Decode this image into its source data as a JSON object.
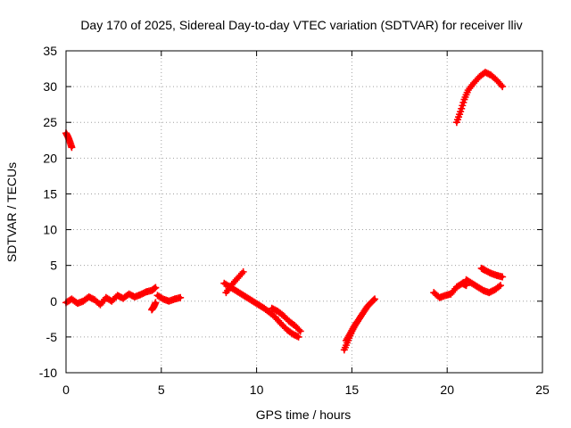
{
  "chart_data": {
    "type": "scatter",
    "title": "Day 170 of 2025, Sidereal Day-to-day VTEC variation (SDTVAR) for receiver lliv",
    "xlabel": "GPS time / hours",
    "ylabel": "SDTVAR / TECUs",
    "xlim": [
      0,
      25
    ],
    "ylim": [
      -10,
      35
    ],
    "xticks": [
      0,
      5,
      10,
      15,
      20,
      25
    ],
    "yticks": [
      -10,
      -5,
      0,
      5,
      10,
      15,
      20,
      25,
      30,
      35
    ],
    "grid": true,
    "marker": "+",
    "color": "#ff0000",
    "segments": [
      {
        "x": [
          0.0,
          0.1,
          0.2,
          0.3
        ],
        "y": [
          23.5,
          23.0,
          22.3,
          21.5
        ]
      },
      {
        "x": [
          0.0,
          0.3,
          0.6,
          0.9,
          1.2,
          1.5,
          1.8,
          2.1,
          2.4,
          2.7,
          3.0,
          3.3,
          3.6,
          3.9,
          4.2,
          4.5,
          4.7
        ],
        "y": [
          -0.2,
          0.3,
          -0.3,
          0.0,
          0.6,
          0.2,
          -0.5,
          0.5,
          0.0,
          0.8,
          0.4,
          1.0,
          0.6,
          0.9,
          1.3,
          1.5,
          1.9
        ]
      },
      {
        "x": [
          4.5,
          4.6,
          4.7
        ],
        "y": [
          -1.2,
          -0.8,
          -0.2
        ]
      },
      {
        "x": [
          4.8,
          5.1,
          5.4,
          5.7,
          6.0
        ],
        "y": [
          0.8,
          0.3,
          0.0,
          0.3,
          0.5
        ]
      },
      {
        "x": [
          8.3,
          8.6,
          8.9,
          9.2,
          9.5,
          9.8,
          10.1,
          10.4,
          10.7,
          11.0,
          11.3,
          11.6,
          11.9,
          12.2
        ],
        "y": [
          2.5,
          2.0,
          1.5,
          1.0,
          0.5,
          0.0,
          -0.5,
          -1.0,
          -1.6,
          -2.3,
          -3.2,
          -4.0,
          -4.6,
          -5.0
        ]
      },
      {
        "x": [
          8.4,
          8.7,
          9.0,
          9.3
        ],
        "y": [
          1.2,
          2.3,
          3.2,
          4.1
        ]
      },
      {
        "x": [
          10.8,
          11.1,
          11.4,
          11.7,
          12.0,
          12.3
        ],
        "y": [
          -1.0,
          -1.4,
          -2.0,
          -2.8,
          -3.4,
          -4.2
        ]
      },
      {
        "x": [
          14.6,
          14.8,
          15.0,
          15.2,
          15.4,
          15.6,
          15.8,
          16.0,
          16.2
        ],
        "y": [
          -6.8,
          -5.5,
          -4.2,
          -3.2,
          -2.4,
          -1.6,
          -0.8,
          -0.2,
          0.3
        ]
      },
      {
        "x": [
          14.7,
          14.9,
          15.1,
          15.3
        ],
        "y": [
          -5.5,
          -4.6,
          -3.6,
          -2.8
        ]
      },
      {
        "x": [
          19.3,
          19.6,
          19.9,
          20.2,
          20.5,
          20.8,
          21.0
        ],
        "y": [
          1.2,
          0.5,
          0.8,
          1.0,
          2.0,
          2.5,
          2.2
        ]
      },
      {
        "x": [
          21.0,
          21.3,
          21.6,
          21.9,
          22.2,
          22.5,
          22.8
        ],
        "y": [
          3.0,
          2.5,
          2.0,
          1.5,
          1.2,
          1.6,
          2.2
        ]
      },
      {
        "x": [
          21.8,
          22.0,
          22.3,
          22.6,
          22.9
        ],
        "y": [
          4.6,
          4.3,
          3.9,
          3.6,
          3.4
        ]
      },
      {
        "x": [
          20.5,
          20.7,
          20.9,
          21.1,
          21.4,
          21.7,
          22.0,
          22.3,
          22.6,
          22.9
        ],
        "y": [
          25.0,
          26.5,
          28.2,
          29.5,
          30.5,
          31.4,
          32.0,
          31.6,
          30.9,
          30.0
        ]
      }
    ]
  }
}
